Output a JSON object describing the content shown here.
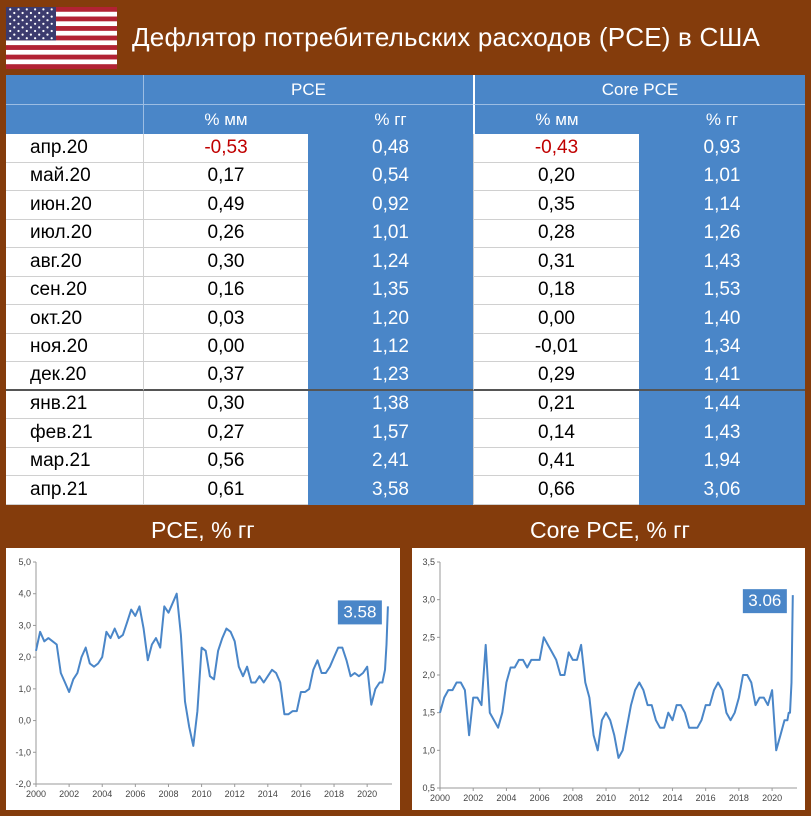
{
  "header": {
    "title": "Дефлятор потребительских расходов (PCE) в США"
  },
  "table": {
    "groups": [
      "PCE",
      "Core PCE"
    ],
    "subheaders": [
      "% мм",
      "% гг",
      "% мм",
      "% гг"
    ],
    "rows": [
      {
        "month": "апр.20",
        "pce_mm": "-0,53",
        "pce_yy": "0,48",
        "core_mm": "-0,43",
        "core_yy": "0,93"
      },
      {
        "month": "май.20",
        "pce_mm": "0,17",
        "pce_yy": "0,54",
        "core_mm": "0,20",
        "core_yy": "1,01"
      },
      {
        "month": "июн.20",
        "pce_mm": "0,49",
        "pce_yy": "0,92",
        "core_mm": "0,35",
        "core_yy": "1,14"
      },
      {
        "month": "июл.20",
        "pce_mm": "0,26",
        "pce_yy": "1,01",
        "core_mm": "0,28",
        "core_yy": "1,26"
      },
      {
        "month": "авг.20",
        "pce_mm": "0,30",
        "pce_yy": "1,24",
        "core_mm": "0,31",
        "core_yy": "1,43"
      },
      {
        "month": "сен.20",
        "pce_mm": "0,16",
        "pce_yy": "1,35",
        "core_mm": "0,18",
        "core_yy": "1,53"
      },
      {
        "month": "окт.20",
        "pce_mm": "0,03",
        "pce_yy": "1,20",
        "core_mm": "0,00",
        "core_yy": "1,40"
      },
      {
        "month": "ноя.20",
        "pce_mm": "0,00",
        "pce_yy": "1,12",
        "core_mm": "-0,01",
        "core_yy": "1,34"
      },
      {
        "month": "дек.20",
        "pce_mm": "0,37",
        "pce_yy": "1,23",
        "core_mm": "0,29",
        "core_yy": "1,41"
      },
      {
        "month": "янв.21",
        "pce_mm": "0,30",
        "pce_yy": "1,38",
        "core_mm": "0,21",
        "core_yy": "1,44"
      },
      {
        "month": "фев.21",
        "pce_mm": "0,27",
        "pce_yy": "1,57",
        "core_mm": "0,14",
        "core_yy": "1,43"
      },
      {
        "month": "мар.21",
        "pce_mm": "0,56",
        "pce_yy": "2,41",
        "core_mm": "0,41",
        "core_yy": "1,94"
      },
      {
        "month": "апр.21",
        "pce_mm": "0,61",
        "pce_yy": "3,58",
        "core_mm": "0,66",
        "core_yy": "3,06"
      }
    ]
  },
  "colors": {
    "background": "#843c0c",
    "accent_blue": "#4a86c8",
    "negative_red": "#c00000",
    "line_blue": "#4a86c8"
  },
  "chart_data": [
    {
      "type": "line",
      "title": "PCE, % гг",
      "xlabel": "",
      "ylabel": "",
      "xlim": [
        2000,
        2021.5
      ],
      "ylim": [
        -2,
        5
      ],
      "yticks": [
        "-2,0",
        "-1,0",
        "0,0",
        "1,0",
        "2,0",
        "3,0",
        "4,0",
        "5,0"
      ],
      "ytick_values": [
        -2,
        -1,
        0,
        1,
        2,
        3,
        4,
        5
      ],
      "xticks": [
        "2000",
        "2002",
        "2004",
        "2006",
        "2008",
        "2010",
        "2012",
        "2014",
        "2016",
        "2018",
        "2020"
      ],
      "xtick_values": [
        2000,
        2002,
        2004,
        2006,
        2008,
        2010,
        2012,
        2014,
        2016,
        2018,
        2020
      ],
      "callout": "3.58",
      "series": [
        {
          "x": [
            2000,
            2000.25,
            2000.5,
            2000.75,
            2001,
            2001.25,
            2001.5,
            2001.75,
            2002,
            2002.25,
            2002.5,
            2002.75,
            2003,
            2003.25,
            2003.5,
            2003.75,
            2004,
            2004.25,
            2004.5,
            2004.75,
            2005,
            2005.25,
            2005.5,
            2005.75,
            2006,
            2006.25,
            2006.5,
            2006.75,
            2007,
            2007.25,
            2007.5,
            2007.75,
            2008,
            2008.25,
            2008.5,
            2008.75,
            2009,
            2009.25,
            2009.5,
            2009.75,
            2010,
            2010.25,
            2010.5,
            2010.75,
            2011,
            2011.25,
            2011.5,
            2011.75,
            2012,
            2012.25,
            2012.5,
            2012.75,
            2013,
            2013.25,
            2013.5,
            2013.75,
            2014,
            2014.25,
            2014.5,
            2014.75,
            2015,
            2015.25,
            2015.5,
            2015.75,
            2016,
            2016.25,
            2016.5,
            2016.75,
            2017,
            2017.25,
            2017.5,
            2017.75,
            2018,
            2018.25,
            2018.5,
            2018.75,
            2019,
            2019.25,
            2019.5,
            2019.75,
            2020,
            2020.25,
            2020.5,
            2020.75,
            2020.92,
            2021,
            2021.08,
            2021.17,
            2021.25
          ],
          "y": [
            2.2,
            2.8,
            2.5,
            2.6,
            2.5,
            2.4,
            1.5,
            1.2,
            0.9,
            1.3,
            1.5,
            2.0,
            2.3,
            1.8,
            1.7,
            1.8,
            2.0,
            2.8,
            2.6,
            2.9,
            2.6,
            2.7,
            3.1,
            3.5,
            3.3,
            3.6,
            2.9,
            1.9,
            2.4,
            2.6,
            2.3,
            3.6,
            3.4,
            3.7,
            4.0,
            2.7,
            0.6,
            -0.2,
            -0.8,
            0.3,
            2.3,
            2.2,
            1.4,
            1.3,
            2.2,
            2.6,
            2.9,
            2.8,
            2.5,
            1.7,
            1.4,
            1.7,
            1.2,
            1.2,
            1.4,
            1.2,
            1.4,
            1.6,
            1.5,
            1.2,
            0.2,
            0.2,
            0.3,
            0.3,
            0.9,
            0.9,
            1.0,
            1.6,
            1.9,
            1.5,
            1.5,
            1.7,
            2.0,
            2.3,
            2.3,
            1.9,
            1.4,
            1.5,
            1.4,
            1.5,
            1.7,
            0.5,
            1.0,
            1.2,
            1.2,
            1.4,
            1.6,
            2.4,
            3.6
          ]
        }
      ]
    },
    {
      "type": "line",
      "title": "Core PCE, % гг",
      "xlabel": "",
      "ylabel": "",
      "xlim": [
        2000,
        2021.5
      ],
      "ylim": [
        0.5,
        3.5
      ],
      "yticks": [
        "0,5",
        "1,0",
        "1,5",
        "2,0",
        "2,5",
        "3,0",
        "3,5"
      ],
      "ytick_values": [
        0.5,
        1,
        1.5,
        2,
        2.5,
        3,
        3.5
      ],
      "xticks": [
        "2000",
        "2002",
        "2004",
        "2006",
        "2008",
        "2010",
        "2012",
        "2014",
        "2016",
        "2018",
        "2020"
      ],
      "xtick_values": [
        2000,
        2002,
        2004,
        2006,
        2008,
        2010,
        2012,
        2014,
        2016,
        2018,
        2020
      ],
      "callout": "3.06",
      "series": [
        {
          "x": [
            2000,
            2000.25,
            2000.5,
            2000.75,
            2001,
            2001.25,
            2001.5,
            2001.75,
            2002,
            2002.25,
            2002.5,
            2002.75,
            2003,
            2003.25,
            2003.5,
            2003.75,
            2004,
            2004.25,
            2004.5,
            2004.75,
            2005,
            2005.25,
            2005.5,
            2005.75,
            2006,
            2006.25,
            2006.5,
            2006.75,
            2007,
            2007.25,
            2007.5,
            2007.75,
            2008,
            2008.25,
            2008.5,
            2008.75,
            2009,
            2009.25,
            2009.5,
            2009.75,
            2010,
            2010.25,
            2010.5,
            2010.75,
            2011,
            2011.25,
            2011.5,
            2011.75,
            2012,
            2012.25,
            2012.5,
            2012.75,
            2013,
            2013.25,
            2013.5,
            2013.75,
            2014,
            2014.25,
            2014.5,
            2014.75,
            2015,
            2015.25,
            2015.5,
            2015.75,
            2016,
            2016.25,
            2016.5,
            2016.75,
            2017,
            2017.25,
            2017.5,
            2017.75,
            2018,
            2018.25,
            2018.5,
            2018.75,
            2019,
            2019.25,
            2019.5,
            2019.75,
            2020,
            2020.25,
            2020.5,
            2020.75,
            2020.92,
            2021,
            2021.08,
            2021.17,
            2021.25
          ],
          "y": [
            1.5,
            1.7,
            1.8,
            1.8,
            1.9,
            1.9,
            1.8,
            1.2,
            1.7,
            1.7,
            1.6,
            2.4,
            1.5,
            1.4,
            1.3,
            1.5,
            1.9,
            2.1,
            2.1,
            2.2,
            2.2,
            2.1,
            2.2,
            2.2,
            2.2,
            2.5,
            2.4,
            2.3,
            2.2,
            2.0,
            2.0,
            2.3,
            2.2,
            2.2,
            2.4,
            1.9,
            1.7,
            1.2,
            1.0,
            1.4,
            1.5,
            1.4,
            1.2,
            0.9,
            1.0,
            1.3,
            1.6,
            1.8,
            1.9,
            1.8,
            1.6,
            1.6,
            1.4,
            1.3,
            1.3,
            1.5,
            1.4,
            1.6,
            1.6,
            1.5,
            1.3,
            1.3,
            1.3,
            1.4,
            1.6,
            1.6,
            1.8,
            1.9,
            1.8,
            1.5,
            1.4,
            1.5,
            1.7,
            2.0,
            2.0,
            1.9,
            1.6,
            1.7,
            1.7,
            1.6,
            1.8,
            1.0,
            1.2,
            1.4,
            1.4,
            1.5,
            1.5,
            1.9,
            3.06
          ]
        }
      ]
    }
  ]
}
